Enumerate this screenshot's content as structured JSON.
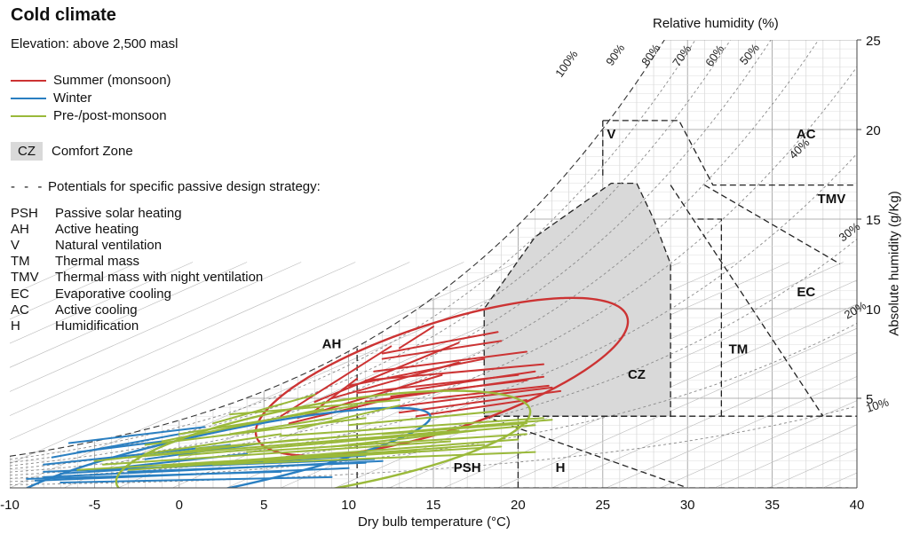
{
  "legend": {
    "title": "Cold climate",
    "subtitle": "Elevation: above 2,500 masl",
    "series_labels": [
      "Summer (monsoon)",
      "Winter",
      "Pre-/post-monsoon"
    ],
    "comfort_box": "CZ",
    "comfort_label": "Comfort Zone",
    "dash_mark": "- - -",
    "potentials_label": "Potentials for specific passive design strategy:",
    "strategies": [
      {
        "abbr": "PSH",
        "name": "Passive solar heating"
      },
      {
        "abbr": "AH",
        "name": "Active heating"
      },
      {
        "abbr": "V",
        "name": "Natural ventilation"
      },
      {
        "abbr": "TM",
        "name": "Thermal mass"
      },
      {
        "abbr": "TMV",
        "name": "Thermal mass with night ventilation"
      },
      {
        "abbr": "EC",
        "name": "Evaporative cooling"
      },
      {
        "abbr": "AC",
        "name": "Active cooling"
      },
      {
        "abbr": "H",
        "name": "Humidification"
      }
    ]
  },
  "chart_data": {
    "type": "psychrometric",
    "xlabel": "Dry bulb temperature (°C)",
    "ylabel": "Absolute humidity (g/Kg)",
    "top_label": "Relative humidity (%)",
    "xlim": [
      -10,
      40
    ],
    "ylim": [
      0,
      25
    ],
    "x_ticks": [
      "-10",
      "-5",
      "0",
      "5",
      "10",
      "15",
      "20",
      "25",
      "30",
      "35",
      "40"
    ],
    "y_ticks": [
      "5",
      "10",
      "15",
      "20",
      "25"
    ],
    "rh_curves": [
      {
        "rh": 10,
        "label": "10%"
      },
      {
        "rh": 20,
        "label": "20%"
      },
      {
        "rh": 30,
        "label": "30%"
      },
      {
        "rh": 40,
        "label": "40%"
      },
      {
        "rh": 50,
        "label": "50%"
      },
      {
        "rh": 60,
        "label": "60%"
      },
      {
        "rh": 70,
        "label": "70%"
      },
      {
        "rh": 80,
        "label": "80%"
      },
      {
        "rh": 90,
        "label": "90%"
      },
      {
        "rh": 100,
        "label": "100%"
      }
    ],
    "comfort_zone": [
      [
        18,
        4
      ],
      [
        29,
        4
      ],
      [
        29,
        12.5
      ],
      [
        28,
        15
      ],
      [
        27,
        17
      ],
      [
        25.5,
        17
      ],
      [
        21,
        14
      ],
      [
        18,
        10
      ]
    ],
    "strategy_zones": [
      {
        "label": "AH",
        "x": 9,
        "y": 7.8
      },
      {
        "label": "V",
        "x": 25.5,
        "y": 19.5
      },
      {
        "label": "AC",
        "x": 37,
        "y": 19.5
      },
      {
        "label": "TMV",
        "x": 38.5,
        "y": 15.9
      },
      {
        "label": "EC",
        "x": 37,
        "y": 10.7
      },
      {
        "label": "TM",
        "x": 33,
        "y": 7.5
      },
      {
        "label": "CZ",
        "x": 27,
        "y": 6.1
      },
      {
        "label": "PSH",
        "x": 17,
        "y": 0.9
      },
      {
        "label": "H",
        "x": 22.5,
        "y": 0.9
      }
    ],
    "series": [
      {
        "name": "Summer (monsoon)",
        "color": "#cc3333",
        "envelope": {
          "cx": 15.5,
          "cy": 6.2,
          "rx": 11.5,
          "ry": 3,
          "rot": 18
        },
        "segments": [
          [
            [
              12,
              7.2
            ],
            [
              19,
              8.2
            ]
          ],
          [
            [
              12,
              7.5
            ],
            [
              18.8,
              8.7
            ]
          ],
          [
            [
              13,
              7.8
            ],
            [
              15,
              9
            ]
          ],
          [
            [
              11.5,
              6.5
            ],
            [
              20.5,
              7.6
            ]
          ],
          [
            [
              11,
              6.0
            ],
            [
              21.5,
              6.9
            ]
          ],
          [
            [
              10.5,
              5.3
            ],
            [
              20,
              6.3
            ]
          ],
          [
            [
              7,
              3.9
            ],
            [
              15.5,
              6.3
            ]
          ],
          [
            [
              6,
              4.0
            ],
            [
              12.5,
              7.9
            ]
          ],
          [
            [
              10,
              5.7
            ],
            [
              18,
              7.2
            ]
          ],
          [
            [
              9,
              5.0
            ],
            [
              16.5,
              7.0
            ]
          ],
          [
            [
              12.5,
              4.5
            ],
            [
              22,
              5.6
            ]
          ],
          [
            [
              13,
              4.2
            ],
            [
              22.5,
              5.4
            ]
          ],
          [
            [
              14,
              4.0
            ],
            [
              20.5,
              4.9
            ]
          ],
          [
            [
              6.5,
              3.6
            ],
            [
              13,
              5.1
            ]
          ],
          [
            [
              8,
              4.3
            ],
            [
              10.5,
              6.1
            ]
          ],
          [
            [
              11,
              4.8
            ],
            [
              21.5,
              6.2
            ]
          ],
          [
            [
              8,
              4.8
            ],
            [
              16.5,
              8.1
            ]
          ],
          [
            [
              12.5,
              5.1
            ],
            [
              20.5,
              6.0
            ]
          ],
          [
            [
              14,
              5.5
            ],
            [
              21,
              6.5
            ]
          ],
          [
            [
              15,
              5.0
            ],
            [
              21.8,
              5.7
            ]
          ]
        ]
      },
      {
        "name": "Winter",
        "color": "#2a7fc1",
        "envelope": {
          "cx": 2.3,
          "cy": 1.5,
          "rx": 12.8,
          "ry": 1.6,
          "rot": 12
        },
        "segments": [
          [
            [
              -6.5,
              2.5
            ],
            [
              1.5,
              3.4
            ]
          ],
          [
            [
              -7.5,
              1.7
            ],
            [
              0,
              3.0
            ]
          ],
          [
            [
              -8,
              1.3
            ],
            [
              3,
              2.4
            ]
          ],
          [
            [
              -8,
              0.6
            ],
            [
              12,
              1.5
            ]
          ],
          [
            [
              -8.5,
              0.4
            ],
            [
              10,
              1.1
            ]
          ],
          [
            [
              -7,
              0.8
            ],
            [
              11,
              1.8
            ]
          ],
          [
            [
              -4,
              1.1
            ],
            [
              4,
              1.9
            ]
          ],
          [
            [
              -9,
              0.5
            ],
            [
              6,
              0.9
            ]
          ],
          [
            [
              -2,
              1.6
            ],
            [
              5,
              2.5
            ]
          ],
          [
            [
              -6,
              2.0
            ],
            [
              -1,
              2.6
            ]
          ],
          [
            [
              -8,
              0.9
            ],
            [
              11.5,
              1.6
            ]
          ],
          [
            [
              -7,
              0.3
            ],
            [
              9,
              0.6
            ]
          ],
          [
            [
              -3,
              0.9
            ],
            [
              11,
              1.4
            ]
          ]
        ]
      },
      {
        "name": "Pre-/post-monsoon",
        "color": "#9ab93a",
        "envelope": {
          "cx": 8.5,
          "cy": 2.3,
          "rx": 12.4,
          "ry": 2.4,
          "rot": 10
        },
        "segments": [
          [
            [
              0,
              1.8
            ],
            [
              21,
              3.5
            ]
          ],
          [
            [
              1,
              2.2
            ],
            [
              22,
              3.8
            ]
          ],
          [
            [
              -3,
              1.0
            ],
            [
              18,
              2.4
            ]
          ],
          [
            [
              -4.5,
              1.3
            ],
            [
              16,
              2.6
            ]
          ],
          [
            [
              -1,
              1.2
            ],
            [
              20,
              2.7
            ]
          ],
          [
            [
              -2,
              2.4
            ],
            [
              11,
              3.9
            ]
          ],
          [
            [
              0,
              3.0
            ],
            [
              10.5,
              4.6
            ]
          ],
          [
            [
              2,
              3.6
            ],
            [
              8,
              5.2
            ]
          ],
          [
            [
              3,
              3.0
            ],
            [
              9,
              3.9
            ]
          ],
          [
            [
              4,
              2.0
            ],
            [
              20.5,
              3.0
            ]
          ],
          [
            [
              6,
              2.9
            ],
            [
              21.5,
              3.9
            ]
          ],
          [
            [
              -3,
              1.7
            ],
            [
              16.5,
              3.2
            ]
          ],
          [
            [
              -1,
              2.6
            ],
            [
              8.5,
              4.4
            ]
          ],
          [
            [
              10,
              3.5
            ],
            [
              19,
              4.3
            ]
          ],
          [
            [
              -6,
              1.0
            ],
            [
              14,
              2.1
            ]
          ],
          [
            [
              5,
              1.5
            ],
            [
              19,
              2.3
            ]
          ],
          [
            [
              2,
              1.3
            ],
            [
              21,
              2.0
            ]
          ],
          [
            [
              7,
              3.3
            ],
            [
              13,
              4.6
            ]
          ],
          [
            [
              9,
              2.3
            ],
            [
              17.5,
              3.2
            ]
          ],
          [
            [
              -5,
              1.5
            ],
            [
              7,
              2.7
            ]
          ],
          [
            [
              3,
              4.1
            ],
            [
              13,
              4.9
            ]
          ],
          [
            [
              12,
              3.0
            ],
            [
              20.5,
              3.6
            ]
          ],
          [
            [
              -2,
              1.9
            ],
            [
              6,
              3.0
            ]
          ]
        ]
      }
    ]
  }
}
